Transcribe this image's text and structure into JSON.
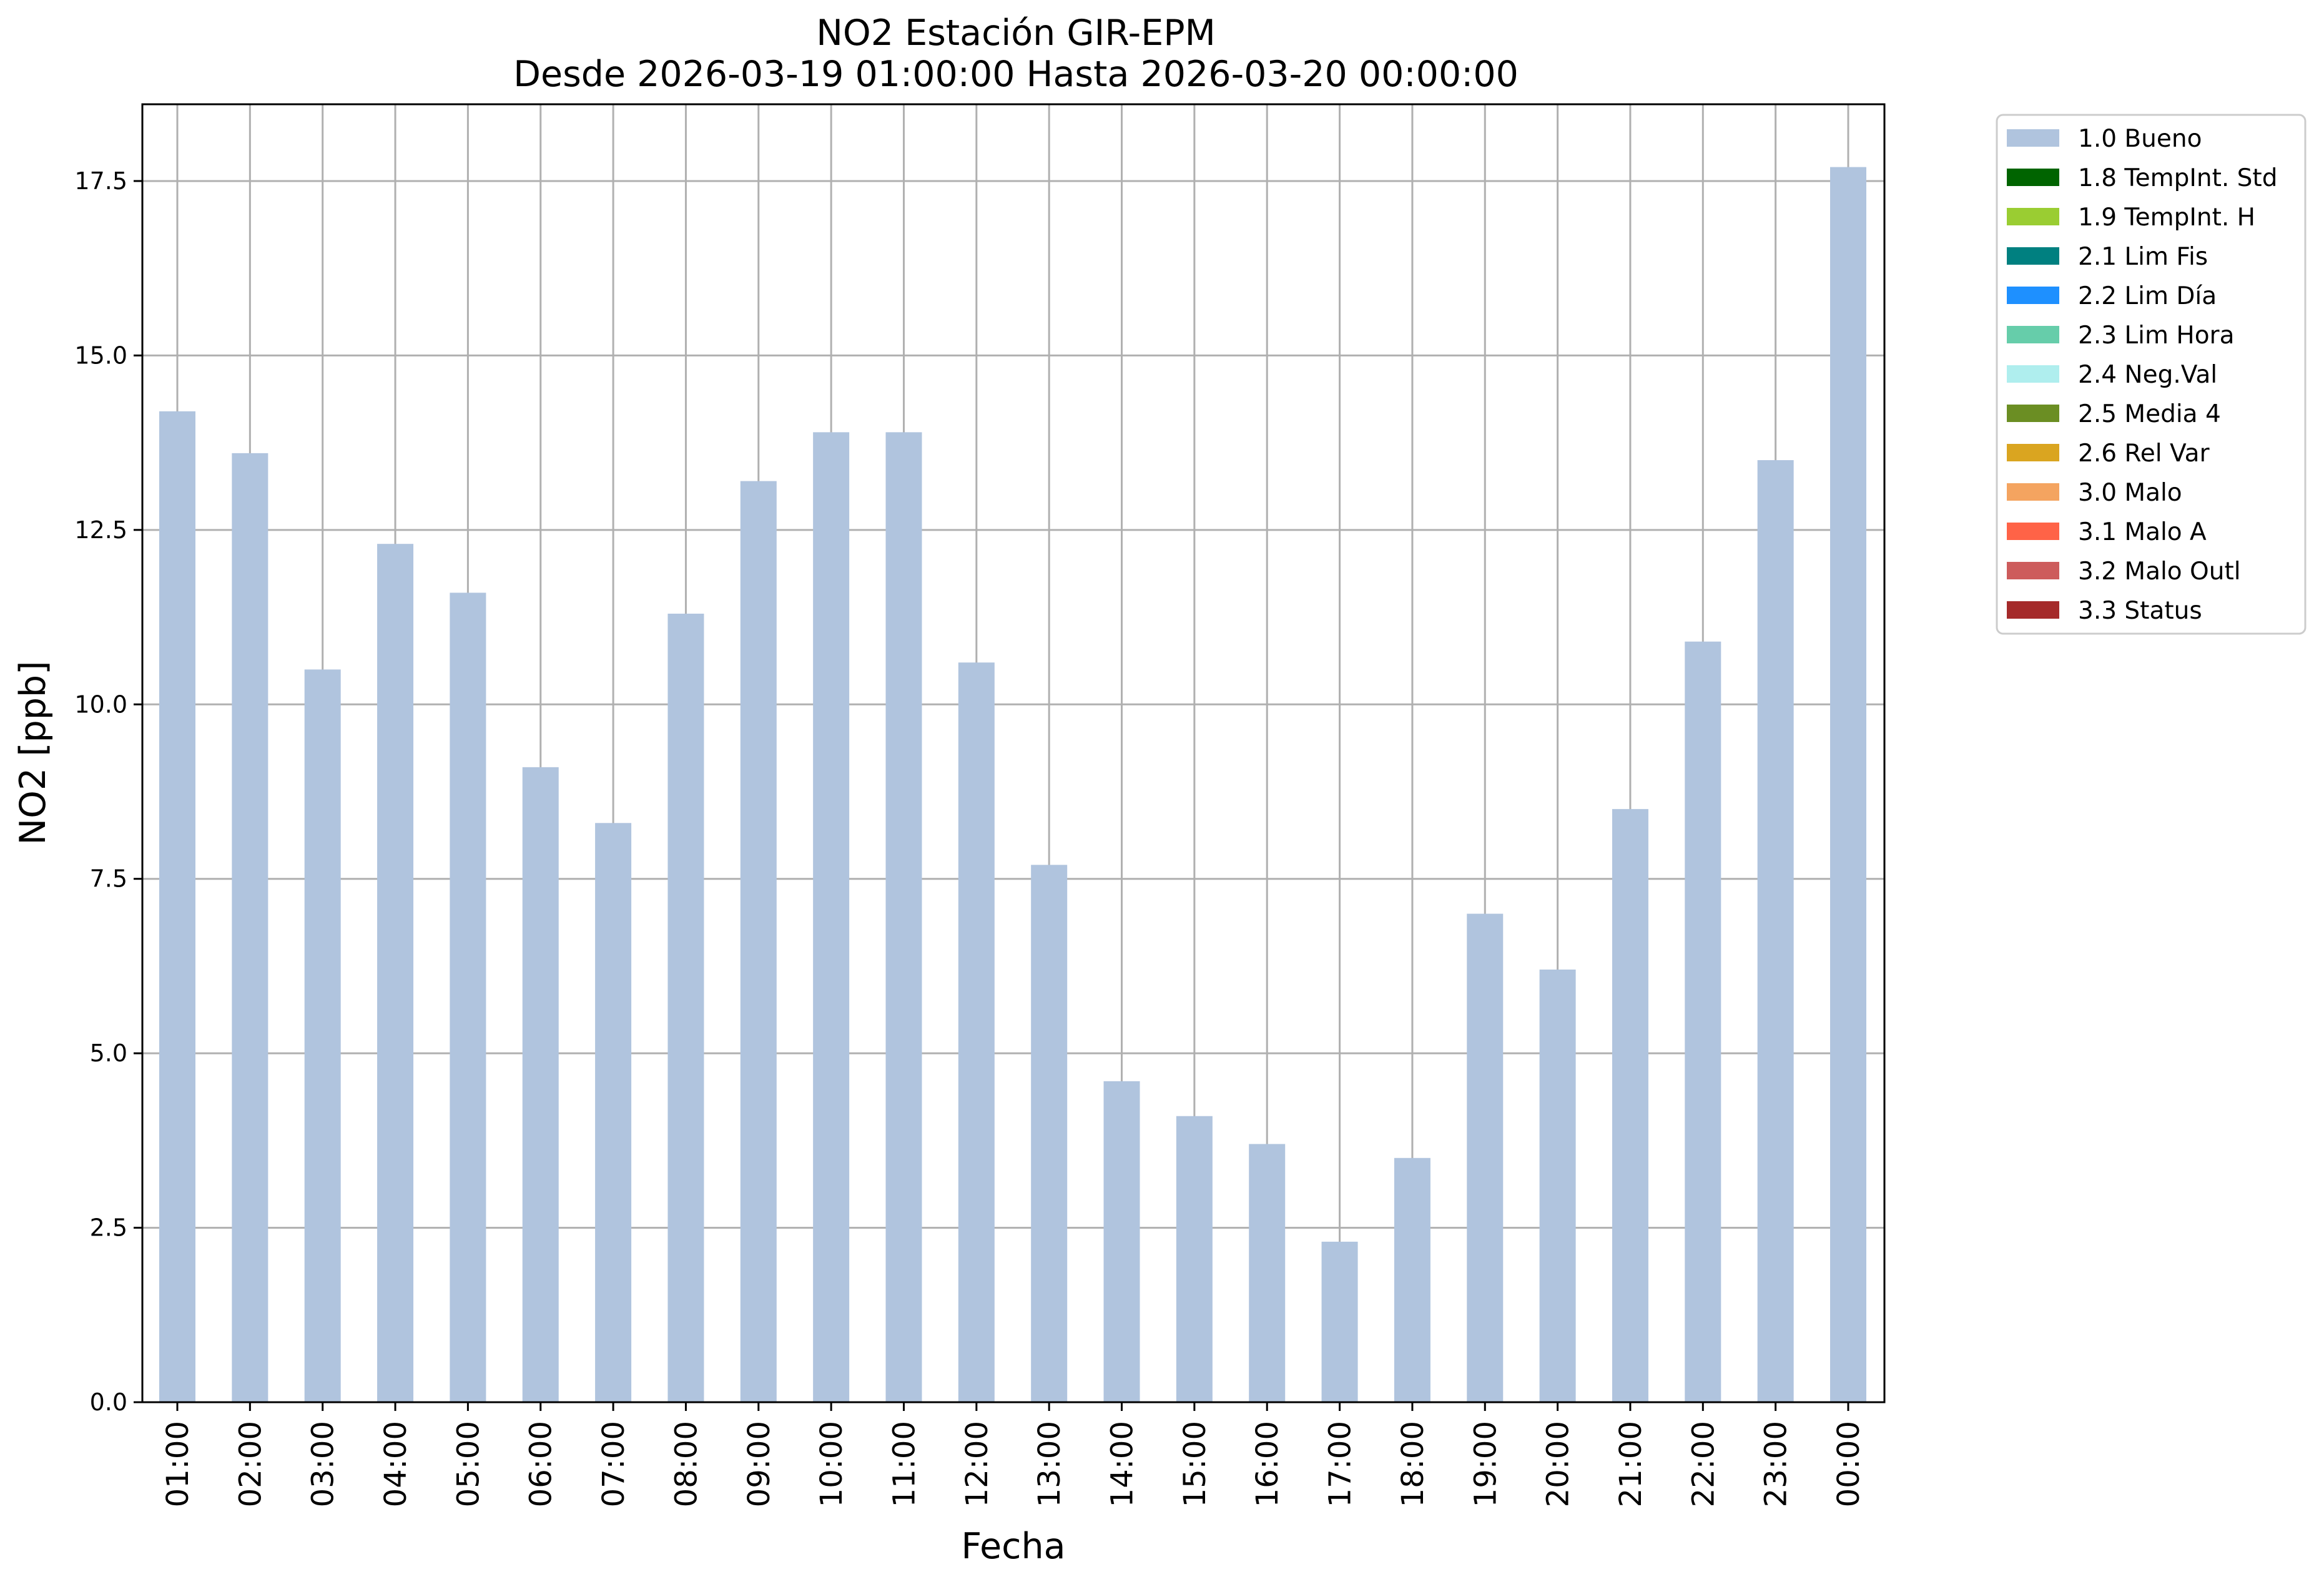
{
  "chart_data": {
    "type": "bar",
    "title": "NO2 Estación GIR-EPM",
    "subtitle": "Desde 2026-03-19 01:00:00 Hasta 2026-03-20 00:00:00",
    "xlabel": "Fecha",
    "ylabel": "NO2 [ppb]",
    "ylim": [
      0,
      18.6
    ],
    "yticks": [
      "0.0",
      "2.5",
      "5.0",
      "7.5",
      "10.0",
      "12.5",
      "15.0",
      "17.5"
    ],
    "grid": true,
    "legend_placement": "outside-top-right",
    "categories": [
      "01:00",
      "02:00",
      "03:00",
      "04:00",
      "05:00",
      "06:00",
      "07:00",
      "08:00",
      "09:00",
      "10:00",
      "11:00",
      "12:00",
      "13:00",
      "14:00",
      "15:00",
      "16:00",
      "17:00",
      "18:00",
      "19:00",
      "20:00",
      "21:00",
      "22:00",
      "23:00",
      "00:00"
    ],
    "series": [
      {
        "name": "1.0 Bueno",
        "color": "#b0c4de",
        "values": [
          14.2,
          13.6,
          10.5,
          12.3,
          11.6,
          9.1,
          8.3,
          11.3,
          13.2,
          13.9,
          13.9,
          10.6,
          7.7,
          4.6,
          4.1,
          3.7,
          2.3,
          3.5,
          7.0,
          6.2,
          8.5,
          10.9,
          13.5,
          17.7
        ]
      }
    ],
    "legend": [
      {
        "label": "1.0 Bueno",
        "color": "#b0c4de"
      },
      {
        "label": "1.8 TempInt. Std",
        "color": "#006400"
      },
      {
        "label": "1.9 TempInt. H",
        "color": "#9acd32"
      },
      {
        "label": "2.1 Lim Fis",
        "color": "#008080"
      },
      {
        "label": "2.2 Lim Día",
        "color": "#1e90ff"
      },
      {
        "label": "2.3 Lim Hora",
        "color": "#66cdaa"
      },
      {
        "label": "2.4 Neg.Val",
        "color": "#afeeee"
      },
      {
        "label": "2.5 Media 4",
        "color": "#6b8e23"
      },
      {
        "label": "2.6 Rel Var",
        "color": "#daa520"
      },
      {
        "label": "3.0 Malo",
        "color": "#f4a460"
      },
      {
        "label": "3.1 Malo A",
        "color": "#ff6347"
      },
      {
        "label": "3.2 Malo Outl",
        "color": "#cd5c5c"
      },
      {
        "label": "3.3 Status",
        "color": "#a52a2a"
      }
    ]
  }
}
